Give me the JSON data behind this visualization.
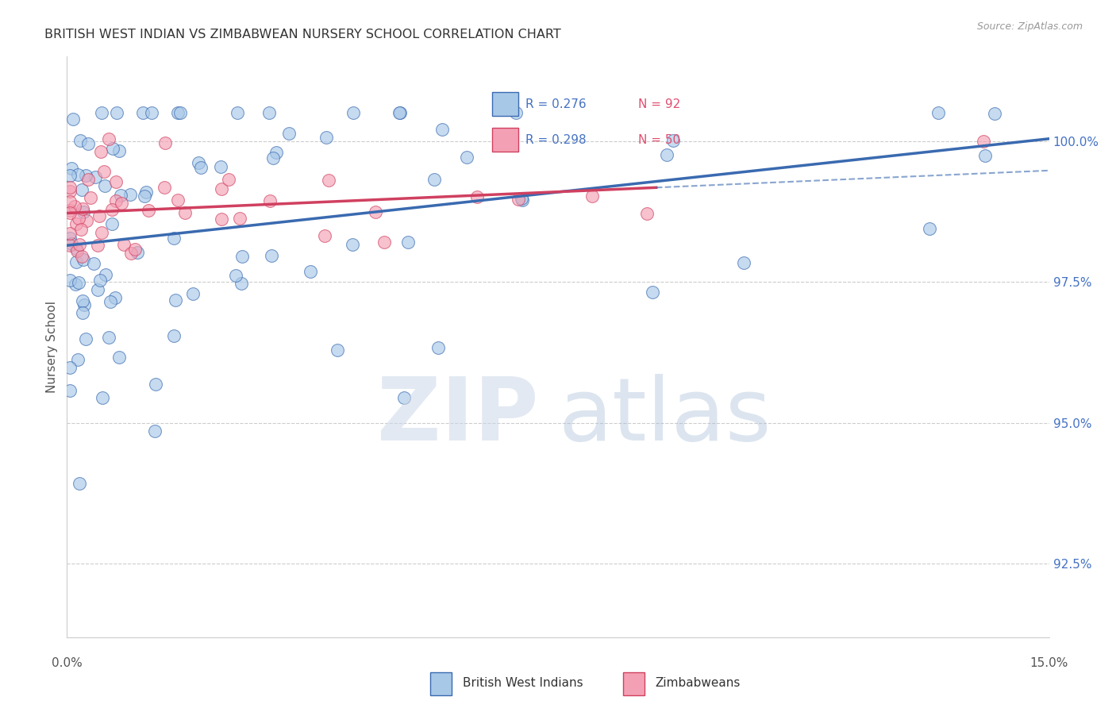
{
  "title": "BRITISH WEST INDIAN VS ZIMBABWEAN NURSERY SCHOOL CORRELATION CHART",
  "source": "Source: ZipAtlas.com",
  "ylabel": "Nursery School",
  "xlim": [
    0.0,
    15.0
  ],
  "ylim": [
    91.2,
    101.5
  ],
  "yticks": [
    92.5,
    95.0,
    97.5,
    100.0
  ],
  "ytick_labels": [
    "92.5%",
    "95.0%",
    "97.5%",
    "100.0%"
  ],
  "legend1_r": "R = 0.276",
  "legend1_n": "N = 92",
  "legend2_r": "R = 0.298",
  "legend2_n": "N = 50",
  "color_blue_fill": "#a8c8e8",
  "color_blue_edge": "#3a6ab0",
  "color_pink_fill": "#f4a0b4",
  "color_pink_edge": "#d04060",
  "color_blue_text": "#4472c4",
  "color_red_text": "#e05070",
  "color_grid": "#cccccc",
  "color_title": "#333333",
  "color_source": "#999999"
}
